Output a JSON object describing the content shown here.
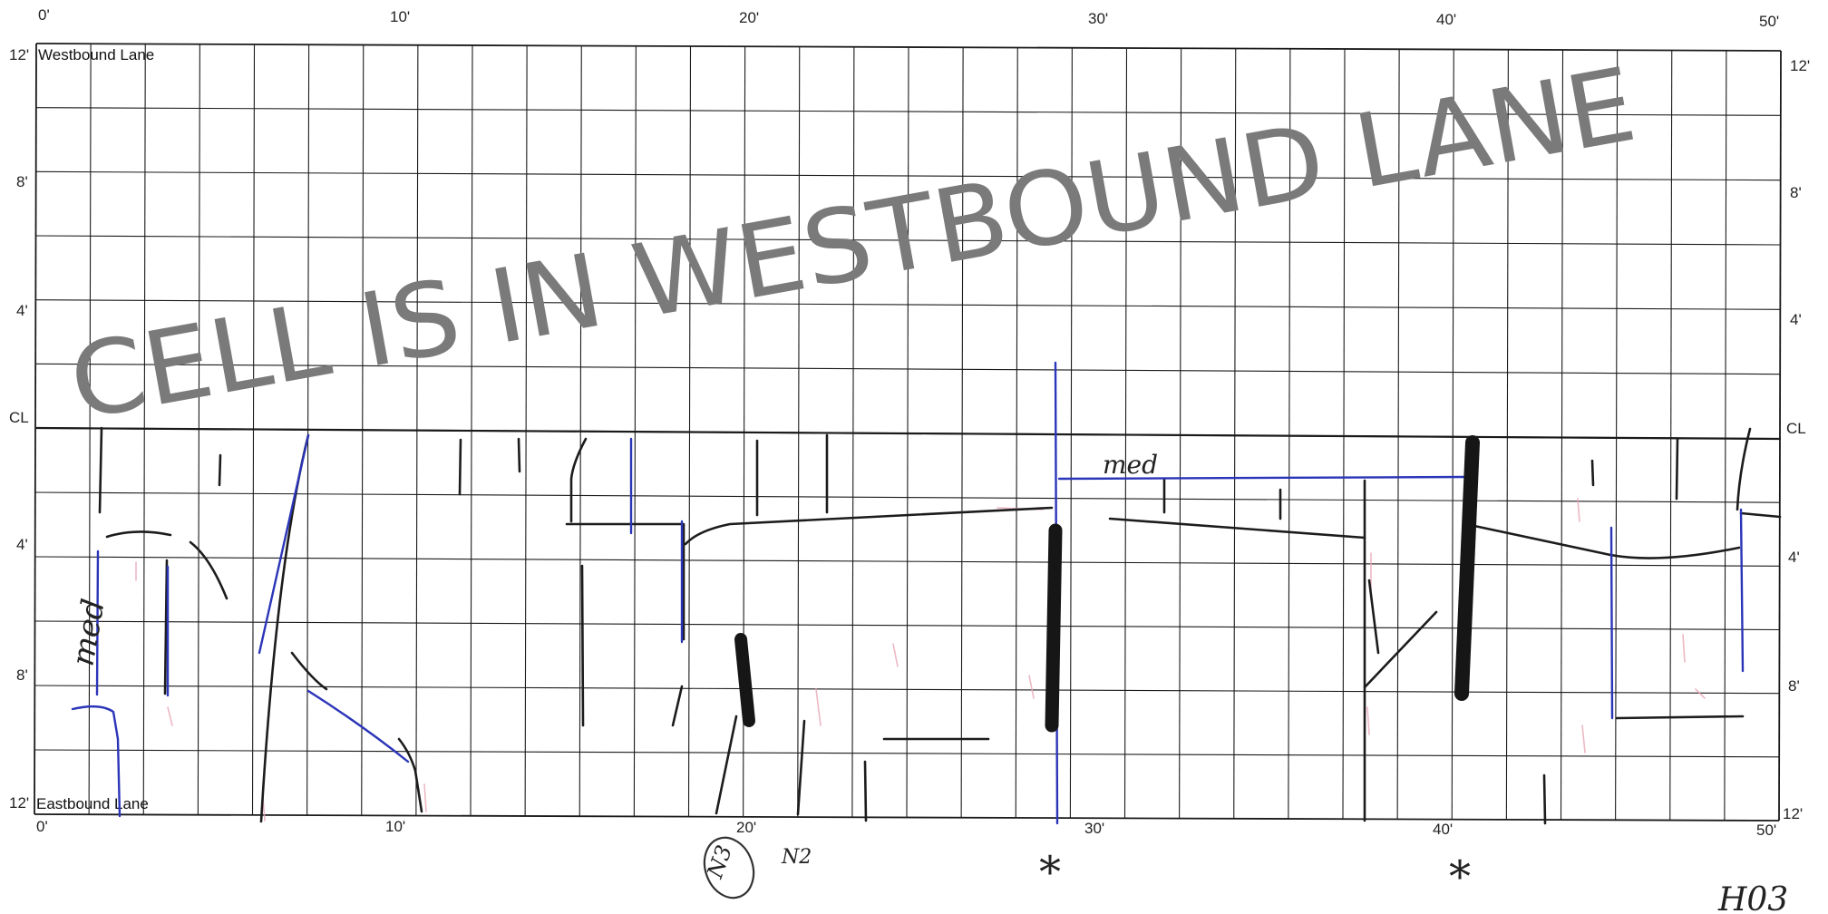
{
  "lanes": {
    "top": "Westbound Lane",
    "bottom": "Eastbound Lane"
  },
  "axis": {
    "x_ticks": [
      "0'",
      "10'",
      "20'",
      "30'",
      "40'",
      "50'"
    ],
    "y_top": [
      "12'",
      "8'",
      "4'",
      "CL"
    ],
    "y_bottom": [
      "4'",
      "8'",
      "12'"
    ]
  },
  "stamp": {
    "text": "CELL IS IN WESTBOUND LANE"
  },
  "annotations": {
    "med_left": "med",
    "med_top": "med",
    "star": "*",
    "circled": "N3",
    "note_near_circle": "N2",
    "corner_mark": "H03"
  },
  "colors": {
    "grid": "#1a1a1a",
    "crack_black": "#1c1c1c",
    "crack_blue": "#2b35b8",
    "stamp": "#7a7a7a",
    "pink": "#e9a6b5"
  }
}
